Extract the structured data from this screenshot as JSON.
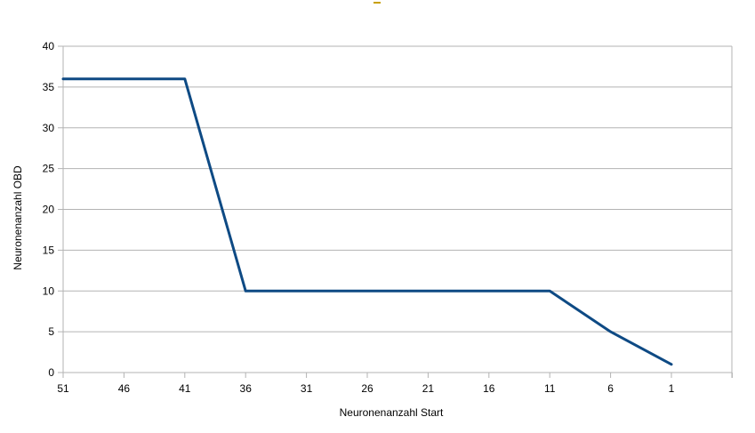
{
  "chart_data": {
    "type": "line",
    "title": "",
    "xlabel": "Neuronenanzahl Start",
    "ylabel": "Neuronenanzahl OBD",
    "x_tick_labels": [
      "51",
      "46",
      "41",
      "36",
      "31",
      "26",
      "21",
      "16",
      "11",
      "6",
      "1"
    ],
    "y_tick_labels": [
      "0",
      "5",
      "10",
      "15",
      "20",
      "25",
      "30",
      "35",
      "40"
    ],
    "ylim": [
      0,
      40
    ],
    "grid": "horizontal",
    "legend": "none",
    "series": [
      {
        "x": [
          51,
          41,
          36,
          11,
          6,
          1
        ],
        "y": [
          36,
          36,
          10,
          10,
          5,
          1
        ],
        "color": "#0e4a84"
      }
    ]
  }
}
